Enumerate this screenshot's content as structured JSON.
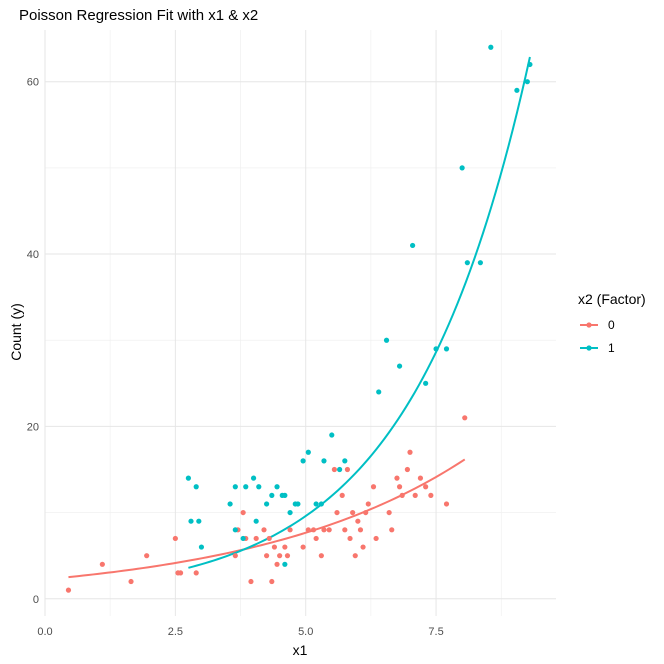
{
  "chart_data": {
    "type": "scatter",
    "title": "Poisson Regression Fit with x1 & x2",
    "xlabel": "x1",
    "ylabel": "Count (y)",
    "xlim": [
      0,
      9.8
    ],
    "ylim": [
      -2,
      66
    ],
    "x_ticks": [
      0,
      2.5,
      5,
      7.5
    ],
    "x_tick_labels": [
      "0.0",
      "2.5",
      "5.0",
      "7.5"
    ],
    "y_ticks": [
      0,
      20,
      40,
      60
    ],
    "y_tick_labels": [
      "0",
      "20",
      "40",
      "60"
    ],
    "grid": true,
    "legend": {
      "title": "x2 (Factor)",
      "position": "right"
    },
    "series": [
      {
        "name": "0",
        "color": "#F8766D",
        "points": [
          [
            0.45,
            1
          ],
          [
            1.1,
            4
          ],
          [
            1.65,
            2
          ],
          [
            1.95,
            5
          ],
          [
            2.5,
            7
          ],
          [
            2.55,
            3
          ],
          [
            2.6,
            3
          ],
          [
            2.9,
            3
          ],
          [
            3.65,
            5
          ],
          [
            3.7,
            8
          ],
          [
            3.8,
            10
          ],
          [
            3.85,
            7
          ],
          [
            3.95,
            2
          ],
          [
            4.05,
            7
          ],
          [
            4.2,
            8
          ],
          [
            4.25,
            5
          ],
          [
            4.3,
            7
          ],
          [
            4.35,
            2
          ],
          [
            4.4,
            6
          ],
          [
            4.45,
            4
          ],
          [
            4.5,
            5
          ],
          [
            4.6,
            6
          ],
          [
            4.65,
            5
          ],
          [
            4.7,
            8
          ],
          [
            4.95,
            6
          ],
          [
            5.05,
            8
          ],
          [
            5.15,
            8
          ],
          [
            5.2,
            7
          ],
          [
            5.3,
            5
          ],
          [
            5.35,
            8
          ],
          [
            5.45,
            8
          ],
          [
            5.55,
            15
          ],
          [
            5.6,
            10
          ],
          [
            5.7,
            12
          ],
          [
            5.75,
            8
          ],
          [
            5.8,
            15
          ],
          [
            5.85,
            7
          ],
          [
            5.9,
            10
          ],
          [
            5.95,
            5
          ],
          [
            6.0,
            9
          ],
          [
            6.05,
            8
          ],
          [
            6.1,
            6
          ],
          [
            6.15,
            10
          ],
          [
            6.2,
            11
          ],
          [
            6.3,
            13
          ],
          [
            6.35,
            7
          ],
          [
            6.6,
            10
          ],
          [
            6.65,
            8
          ],
          [
            6.75,
            14
          ],
          [
            6.8,
            13
          ],
          [
            6.85,
            12
          ],
          [
            6.95,
            15
          ],
          [
            7.0,
            17
          ],
          [
            7.1,
            12
          ],
          [
            7.2,
            14
          ],
          [
            7.3,
            13
          ],
          [
            7.4,
            12
          ],
          [
            7.7,
            11
          ],
          [
            8.05,
            21
          ]
        ],
        "fit": {
          "a": 2.25,
          "b": 0.245,
          "x_range": [
            0.45,
            8.05
          ]
        }
      },
      {
        "name": "1",
        "color": "#00BFC4",
        "points": [
          [
            2.75,
            14
          ],
          [
            2.8,
            9
          ],
          [
            2.9,
            13
          ],
          [
            2.95,
            9
          ],
          [
            3.0,
            6
          ],
          [
            3.55,
            11
          ],
          [
            3.65,
            13
          ],
          [
            3.65,
            8
          ],
          [
            3.8,
            7
          ],
          [
            3.85,
            13
          ],
          [
            4.0,
            14
          ],
          [
            4.05,
            9
          ],
          [
            4.1,
            13
          ],
          [
            4.25,
            11
          ],
          [
            4.35,
            12
          ],
          [
            4.45,
            13
          ],
          [
            4.55,
            12
          ],
          [
            4.6,
            4
          ],
          [
            4.6,
            12
          ],
          [
            4.7,
            10
          ],
          [
            4.8,
            11
          ],
          [
            4.85,
            11
          ],
          [
            4.95,
            16
          ],
          [
            5.05,
            17
          ],
          [
            5.2,
            11
          ],
          [
            5.3,
            11
          ],
          [
            5.35,
            16
          ],
          [
            5.5,
            19
          ],
          [
            5.65,
            15
          ],
          [
            5.75,
            16
          ],
          [
            6.4,
            24
          ],
          [
            6.55,
            30
          ],
          [
            6.8,
            27
          ],
          [
            7.05,
            41
          ],
          [
            7.3,
            25
          ],
          [
            7.5,
            29
          ],
          [
            7.7,
            29
          ],
          [
            8.0,
            50
          ],
          [
            8.1,
            39
          ],
          [
            8.35,
            39
          ],
          [
            8.55,
            64
          ],
          [
            9.05,
            59
          ],
          [
            9.25,
            60
          ],
          [
            9.3,
            62
          ]
        ],
        "fit": {
          "a": 1.08,
          "b": 0.437,
          "x_range": [
            2.75,
            9.3
          ]
        }
      }
    ]
  }
}
